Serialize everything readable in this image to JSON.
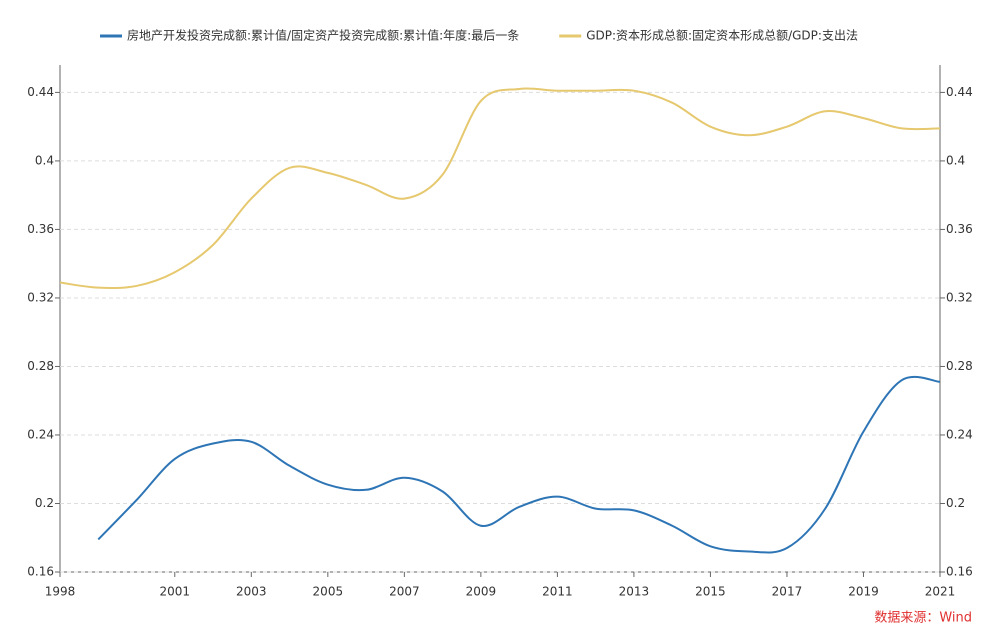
{
  "chart_data": {
    "type": "line",
    "x": [
      1998,
      1999,
      2000,
      2001,
      2002,
      2003,
      2004,
      2005,
      2006,
      2007,
      2008,
      2009,
      2010,
      2011,
      2012,
      2013,
      2014,
      2015,
      2016,
      2017,
      2018,
      2019,
      2020,
      2021
    ],
    "series": [
      {
        "name": "房地产开发投资完成额:累计值/固定资产投资完成额:累计值:年度:最后一条",
        "color": "#2e75b6",
        "values": [
          null,
          0.179,
          0.202,
          0.226,
          0.235,
          0.236,
          0.222,
          0.211,
          0.208,
          0.215,
          0.207,
          0.187,
          0.198,
          0.204,
          0.197,
          0.196,
          0.187,
          0.175,
          0.172,
          0.174,
          0.197,
          0.242,
          0.272,
          0.271
        ]
      },
      {
        "name": "GDP:资本形成总额:固定资本形成总额/GDP:支出法",
        "color": "#e6c86e",
        "values": [
          0.329,
          0.326,
          0.327,
          0.335,
          0.351,
          0.378,
          0.396,
          0.393,
          0.386,
          0.378,
          0.392,
          0.435,
          0.442,
          0.441,
          0.441,
          0.441,
          0.434,
          0.42,
          0.415,
          0.42,
          0.429,
          0.425,
          0.419,
          0.419
        ]
      }
    ],
    "xlim": [
      1998,
      2021
    ],
    "xticks": [
      1998,
      2001,
      2003,
      2005,
      2007,
      2009,
      2011,
      2013,
      2015,
      2017,
      2019,
      2021
    ],
    "ylim": [
      0.16,
      0.456
    ],
    "yticks": [
      0.16,
      0.2,
      0.24,
      0.28,
      0.32,
      0.36,
      0.4,
      0.44
    ],
    "y2lim": [
      0.16,
      0.456
    ],
    "y2ticks": [
      0.16,
      0.2,
      0.24,
      0.28,
      0.32,
      0.36,
      0.4,
      0.44
    ],
    "grid": true,
    "source": "数据来源：Wind"
  }
}
